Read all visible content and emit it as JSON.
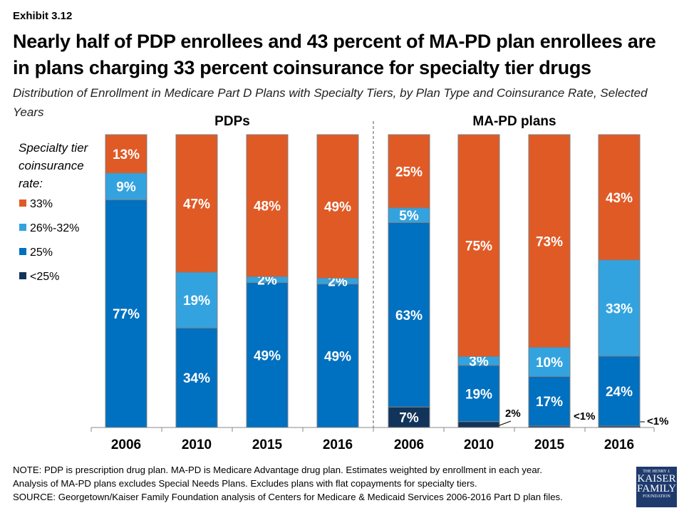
{
  "exhibit": "Exhibit 3.12",
  "chart_data": {
    "type": "bar",
    "stacked": true,
    "title": "Nearly half of PDP enrollees and 43 percent of MA-PD plan enrollees are in plans charging 33 percent coinsurance for specialty tier drugs",
    "subtitle": "Distribution of Enrollment in Medicare Part D Plans with Specialty Tiers, by Plan Type and Coinsurance Rate, Selected Years",
    "legend_title": "Specialty tier coinsurance rate:",
    "legend_placement": "left",
    "groups": [
      {
        "name": "PDPs",
        "categories": [
          "2006",
          "2010",
          "2015",
          "2016"
        ]
      },
      {
        "name": "MA-PD plans",
        "categories": [
          "2006",
          "2010",
          "2015",
          "2016"
        ]
      }
    ],
    "series": [
      {
        "name": "<25%",
        "color": "#12345a",
        "values": [
          0,
          0,
          0,
          0,
          7,
          2,
          0.5,
          0.5
        ],
        "labels": [
          "",
          "",
          "",
          "",
          "7%",
          "2%",
          "<1%",
          "<1%"
        ]
      },
      {
        "name": "25%",
        "color": "#0070c0",
        "values": [
          77,
          34,
          49,
          49,
          63,
          19,
          17,
          24
        ],
        "labels": [
          "77%",
          "34%",
          "49%",
          "49%",
          "63%",
          "19%",
          "17%",
          "24%"
        ]
      },
      {
        "name": "26%-32%",
        "color": "#33a3e0",
        "values": [
          9,
          19,
          2,
          2,
          5,
          3,
          10,
          33
        ],
        "labels": [
          "9%",
          "19%",
          "2%",
          "2%",
          "5%",
          "3%",
          "10%",
          "33%"
        ]
      },
      {
        "name": "33%",
        "color": "#e05a26",
        "values": [
          13,
          47,
          48,
          49,
          25,
          75,
          73,
          43
        ],
        "labels": [
          "13%",
          "47%",
          "48%",
          "49%",
          "25%",
          "75%",
          "73%",
          "43%"
        ]
      }
    ],
    "ylim": [
      0,
      100
    ]
  },
  "notes": {
    "line1": "NOTE: PDP is prescription drug plan. MA-PD is Medicare Advantage drug plan. Estimates weighted by enrollment in each year.",
    "line2": "Analysis of MA-PD plans excludes Special Needs Plans. Excludes plans with flat copayments for specialty tiers.",
    "line3": "SOURCE: Georgetown/Kaiser Family Foundation analysis of Centers for Medicare & Medicaid Services 2006-2016 Part D plan files."
  },
  "logo": {
    "line1": "THE HENRY J.",
    "line2": "KAISER",
    "line3": "FAMILY",
    "line4": "FOUNDATION"
  }
}
